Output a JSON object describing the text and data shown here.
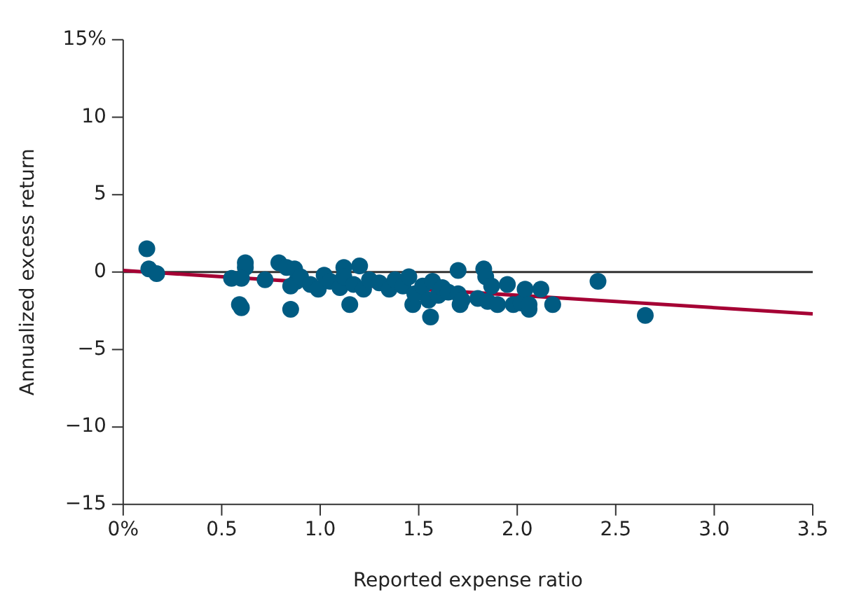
{
  "chart_data": {
    "type": "scatter",
    "xlabel": "Reported expense ratio",
    "ylabel": "Annualized excess return",
    "xlim": [
      0,
      3.5
    ],
    "xticks": [
      {
        "value": 0,
        "label": "0%"
      },
      {
        "value": 0.5,
        "label": "0.5"
      },
      {
        "value": 1,
        "label": "1.0"
      },
      {
        "value": 1.5,
        "label": "1.5"
      },
      {
        "value": 2,
        "label": "2.0"
      },
      {
        "value": 2.5,
        "label": "2.5"
      },
      {
        "value": 3,
        "label": "3.0"
      },
      {
        "value": 3.5,
        "label": "3.5"
      }
    ],
    "ylim": [
      -15,
      15
    ],
    "yticks": [
      {
        "value": -15,
        "label": "−15"
      },
      {
        "value": -10,
        "label": "−10"
      },
      {
        "value": -5,
        "label": "−5"
      },
      0,
      5,
      10,
      {
        "value": 15,
        "label": "15%"
      }
    ],
    "grid": false,
    "legend": false,
    "marker": "circle",
    "ref_lines": [
      {
        "axis": "y",
        "value": 0,
        "color": "#333333"
      }
    ],
    "series": [
      {
        "type": "scatter",
        "color": "#005b82",
        "x": [
          0.12,
          0.13,
          0.17,
          0.55,
          0.59,
          0.6,
          0.62,
          0.62,
          0.6,
          0.72,
          0.79,
          0.83,
          0.85,
          0.87,
          0.88,
          0.85,
          0.9,
          0.95,
          0.99,
          1.02,
          1.05,
          1.1,
          1.12,
          1.12,
          1.15,
          1.17,
          1.2,
          1.22,
          1.25,
          1.3,
          1.35,
          1.38,
          1.42,
          1.45,
          1.47,
          1.48,
          1.52,
          1.55,
          1.56,
          1.57,
          1.6,
          1.62,
          1.65,
          1.7,
          1.7,
          1.71,
          1.72,
          1.8,
          1.83,
          1.84,
          1.85,
          1.87,
          1.9,
          1.95,
          1.98,
          2.02,
          2.04,
          2.06,
          2.06,
          2.12,
          2.18,
          2.41,
          2.65
        ],
        "values": [
          1.5,
          0.2,
          -0.1,
          -0.4,
          -2.1,
          -2.3,
          0.6,
          0.3,
          -0.4,
          -0.5,
          0.6,
          0.3,
          -2.4,
          0.2,
          -0.6,
          -0.9,
          -0.3,
          -0.8,
          -1.1,
          -0.2,
          -0.6,
          -1.0,
          0.3,
          -0.3,
          -2.1,
          -0.8,
          0.4,
          -1.1,
          -0.5,
          -0.7,
          -1.1,
          -0.5,
          -0.9,
          -0.3,
          -2.1,
          -1.4,
          -0.9,
          -1.8,
          -2.9,
          -0.6,
          -1.5,
          -1.0,
          -1.3,
          -1.4,
          0.1,
          -2.1,
          -1.8,
          -1.7,
          0.2,
          -0.3,
          -1.9,
          -0.9,
          -2.1,
          -0.8,
          -2.1,
          -2.0,
          -1.1,
          -2.4,
          -2.1,
          -1.1,
          -2.1,
          -0.6,
          -2.8
        ]
      },
      {
        "type": "line",
        "color": "#a50034",
        "marker": "none",
        "x": [
          0,
          3.5
        ],
        "values": [
          0.1,
          -2.7
        ]
      }
    ]
  }
}
